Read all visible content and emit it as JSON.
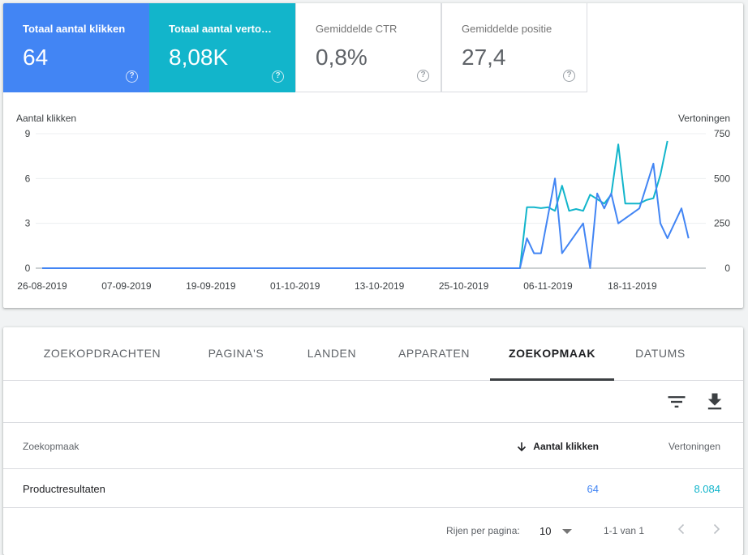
{
  "metrics": [
    {
      "label": "Totaal aantal klikken",
      "value": "64",
      "style": "active-blue"
    },
    {
      "label": "Totaal aantal vertoningen",
      "value": "8,08K",
      "style": "active-teal"
    },
    {
      "label": "Gemiddelde CTR",
      "value": "0,8%",
      "style": "inactive"
    },
    {
      "label": "Gemiddelde positie",
      "value": "27,4",
      "style": "inactive"
    }
  ],
  "help_glyph": "?",
  "colors": {
    "clicks": "#4285f4",
    "impressions": "#12b5cb"
  },
  "chart_data": {
    "type": "line",
    "ylabel_left": "Aantal klikken",
    "ylabel_right": "Vertoningen",
    "y_left_ticks": [
      "0",
      "3",
      "6",
      "9"
    ],
    "y_left_range": [
      0,
      9
    ],
    "y_right_ticks": [
      "0",
      "250",
      "500",
      "750"
    ],
    "y_right_range": [
      0,
      750
    ],
    "x_start": "2019-08-26",
    "x_end": "2019-11-28",
    "x_tick_labels": [
      "26-08-2019",
      "07-09-2019",
      "19-09-2019",
      "01-10-2019",
      "13-10-2019",
      "25-10-2019",
      "06-11-2019",
      "18-11-2019"
    ],
    "grid": true,
    "series": [
      {
        "name": "Aantal klikken",
        "axis": "left",
        "points": [
          [
            "2019-08-26",
            0
          ],
          [
            "2019-11-02",
            0
          ],
          [
            "2019-11-03",
            2
          ],
          [
            "2019-11-04",
            1
          ],
          [
            "2019-11-05",
            1
          ],
          [
            "2019-11-07",
            6
          ],
          [
            "2019-11-08",
            1
          ],
          [
            "2019-11-11",
            3
          ],
          [
            "2019-11-12",
            0
          ],
          [
            "2019-11-13",
            5
          ],
          [
            "2019-11-14",
            4
          ],
          [
            "2019-11-15",
            5
          ],
          [
            "2019-11-16",
            3
          ],
          [
            "2019-11-19",
            4
          ],
          [
            "2019-11-21",
            7
          ],
          [
            "2019-11-22",
            3
          ],
          [
            "2019-11-23",
            2
          ],
          [
            "2019-11-25",
            4
          ],
          [
            "2019-11-26",
            2
          ]
        ]
      },
      {
        "name": "Vertoningen",
        "axis": "right",
        "points": [
          [
            "2019-08-26",
            0
          ],
          [
            "2019-11-02",
            0
          ],
          [
            "2019-11-03",
            340
          ],
          [
            "2019-11-04",
            340
          ],
          [
            "2019-11-05",
            335
          ],
          [
            "2019-11-06",
            340
          ],
          [
            "2019-11-07",
            320
          ],
          [
            "2019-11-08",
            460
          ],
          [
            "2019-11-09",
            320
          ],
          [
            "2019-11-10",
            330
          ],
          [
            "2019-11-11",
            320
          ],
          [
            "2019-11-12",
            410
          ],
          [
            "2019-11-14",
            360
          ],
          [
            "2019-11-15",
            410
          ],
          [
            "2019-11-16",
            690
          ],
          [
            "2019-11-17",
            360
          ],
          [
            "2019-11-19",
            360
          ],
          [
            "2019-11-20",
            380
          ],
          [
            "2019-11-21",
            390
          ],
          [
            "2019-11-22",
            520
          ],
          [
            "2019-11-23",
            710
          ]
        ]
      }
    ]
  },
  "tabs": [
    {
      "label": "ZOEKOPDRACHTEN",
      "selected": false
    },
    {
      "label": "PAGINA'S",
      "selected": false
    },
    {
      "label": "LANDEN",
      "selected": false
    },
    {
      "label": "APPARATEN",
      "selected": false
    },
    {
      "label": "ZOEKOPMAAK",
      "selected": true
    },
    {
      "label": "DATUMS",
      "selected": false
    }
  ],
  "toolbar": {
    "filter_icon": "filter-icon",
    "download_icon": "download-icon"
  },
  "table": {
    "headers": {
      "col1": "Zoekopmaak",
      "col2": "Aantal klikken",
      "col3": "Vertoningen"
    },
    "rows": [
      {
        "name": "Productresultaten",
        "clicks": "64",
        "impressions": "8.084"
      }
    ]
  },
  "pagination": {
    "rows_label": "Rijen per pagina:",
    "rows_value": "10",
    "range": "1-1 van 1"
  }
}
